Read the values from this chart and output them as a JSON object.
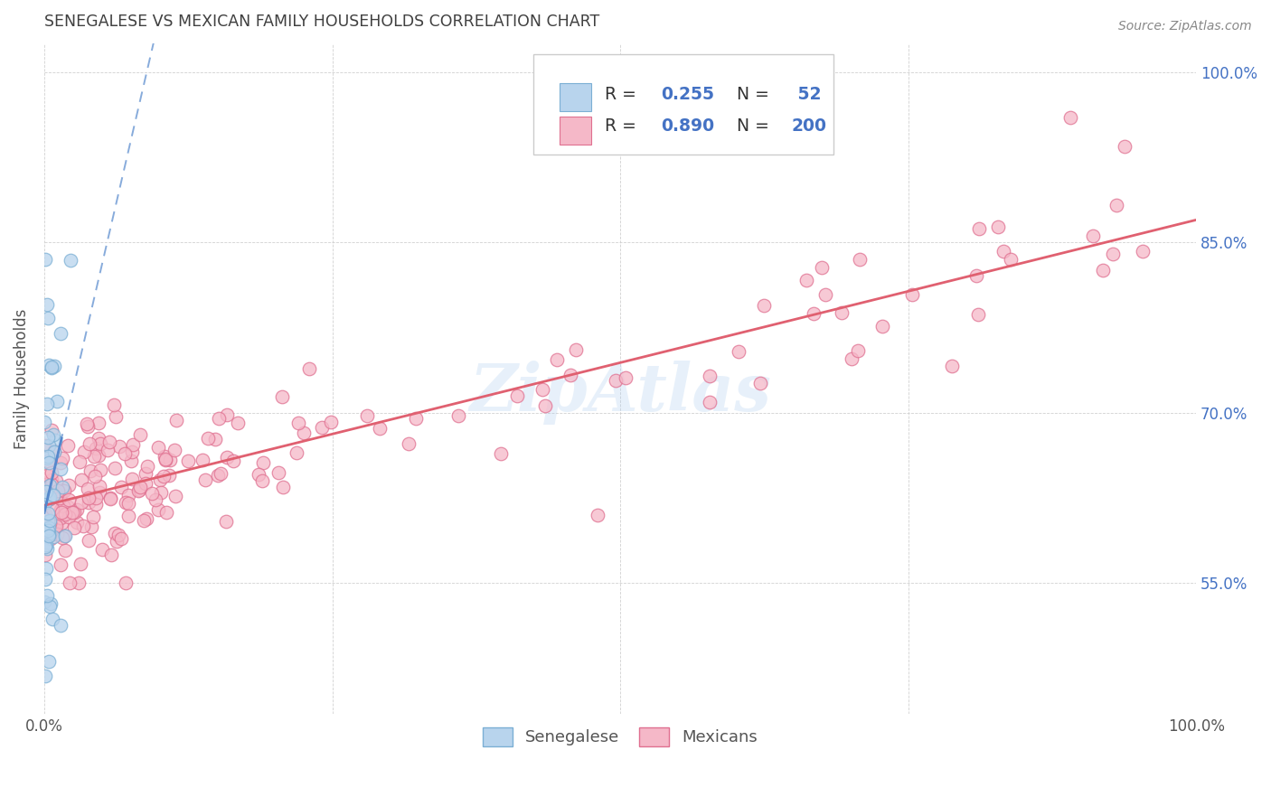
{
  "title": "SENEGALESE VS MEXICAN FAMILY HOUSEHOLDS CORRELATION CHART",
  "source": "Source: ZipAtlas.com",
  "ylabel": "Family Households",
  "xlim": [
    0,
    1
  ],
  "ylim": [
    0.435,
    1.025
  ],
  "yticks": [
    0.55,
    0.7,
    0.85,
    1.0
  ],
  "ytick_labels": [
    "55.0%",
    "70.0%",
    "85.0%",
    "100.0%"
  ],
  "xtick_labels": [
    "0.0%",
    "100.0%"
  ],
  "watermark_text": "ZipAtlas",
  "watermark_color": "#aaccee",
  "watermark_alpha": 0.28,
  "bg_color": "#ffffff",
  "grid_color": "#cccccc",
  "title_color": "#404040",
  "right_axis_color": "#4472c4",
  "senegalese_dot_fill": "#b8d4ed",
  "senegalese_dot_edge": "#7bafd4",
  "mexican_dot_fill": "#f5b8c8",
  "mexican_dot_edge": "#e07090",
  "senegalese_line_color": "#5588cc",
  "mexican_line_color": "#e06070",
  "legend_text_color": "#4472c4",
  "bottom_legend_color": "#555555",
  "dot_size": 110,
  "dot_linewidth": 0.9,
  "dot_alpha": 0.75
}
